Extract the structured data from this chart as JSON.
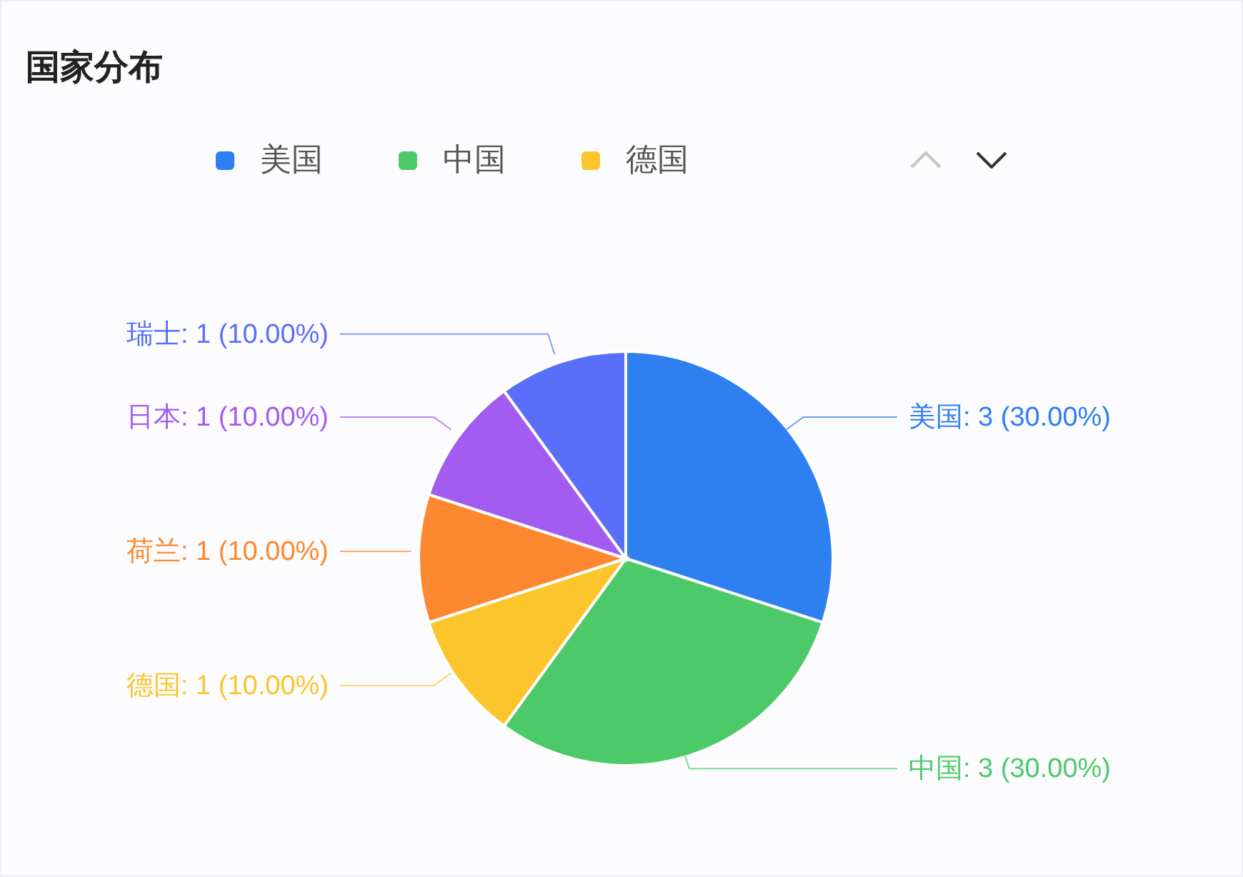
{
  "chart_data": {
    "type": "pie",
    "title": "国家分布",
    "categories": [
      "美国",
      "中国",
      "德国",
      "荷兰",
      "日本",
      "瑞士"
    ],
    "values": [
      3,
      3,
      1,
      1,
      1,
      1
    ],
    "colors": [
      "#2e7ff0",
      "#4cca6a",
      "#fcc52c",
      "#fd882f",
      "#a35cf0",
      "#5a6ff9"
    ],
    "value_labels": [
      ": 3 (30.00%)",
      ": 3 (30.00%)",
      ": 1 (10.00%)",
      ": 1 (10.00%)",
      ": 1 (10.00%)",
      ": 1 (10.00%)"
    ],
    "legend": "top"
  }
}
